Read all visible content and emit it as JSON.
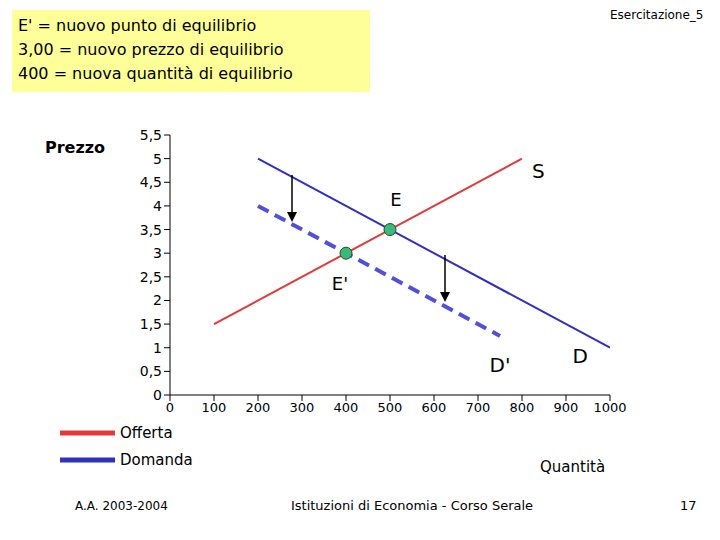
{
  "chart_data": {
    "type": "line",
    "title": "Esercitazione_5",
    "note_lines": [
      "E' = nuovo punto di equilibrio",
      "3,00 = nuovo prezzo di equilibrio",
      "400 = nuova quantità di equilibrio"
    ],
    "ylabel": "Prezzo",
    "xlabel": "Quantità",
    "footer": [
      "A.A. 2003-2004",
      "Istituzioni di Economia - Corso Serale",
      "17"
    ],
    "xlim": [
      0,
      1000
    ],
    "xticks": [
      0,
      100,
      200,
      300,
      400,
      500,
      600,
      700,
      800,
      900,
      1000
    ],
    "ylim": [
      0,
      5.5
    ],
    "yticks": [
      0,
      {
        "value": 0.5,
        "label": "0,5"
      },
      1,
      {
        "value": 1.5,
        "label": "1,5"
      },
      2,
      {
        "value": 2.5,
        "label": "2,5"
      },
      3,
      {
        "value": 3.5,
        "label": "3,5"
      },
      4,
      {
        "value": 4.5,
        "label": "4,5"
      },
      5,
      {
        "value": 5.5,
        "label": "5,5"
      }
    ],
    "series": [
      {
        "name": "Offerta",
        "label": "S",
        "color": "#e03a3a",
        "line_style": "solid",
        "x": [
          100,
          800
        ],
        "values": [
          1.5,
          5
        ]
      },
      {
        "name": "Domanda",
        "label": "D",
        "color": "#3030c0",
        "line_style": "solid",
        "x": [
          200,
          1000
        ],
        "values": [
          5,
          1
        ]
      },
      {
        "name": "Domanda",
        "label": "D'",
        "color": "#5050d8",
        "line_style": "dashed",
        "x": [
          200,
          750
        ],
        "values": [
          4,
          1.25
        ]
      }
    ],
    "annotations": [
      {
        "text": "E",
        "x": 500,
        "y": 3.5
      },
      {
        "text": "E'",
        "x": 400,
        "y": 3
      }
    ]
  }
}
